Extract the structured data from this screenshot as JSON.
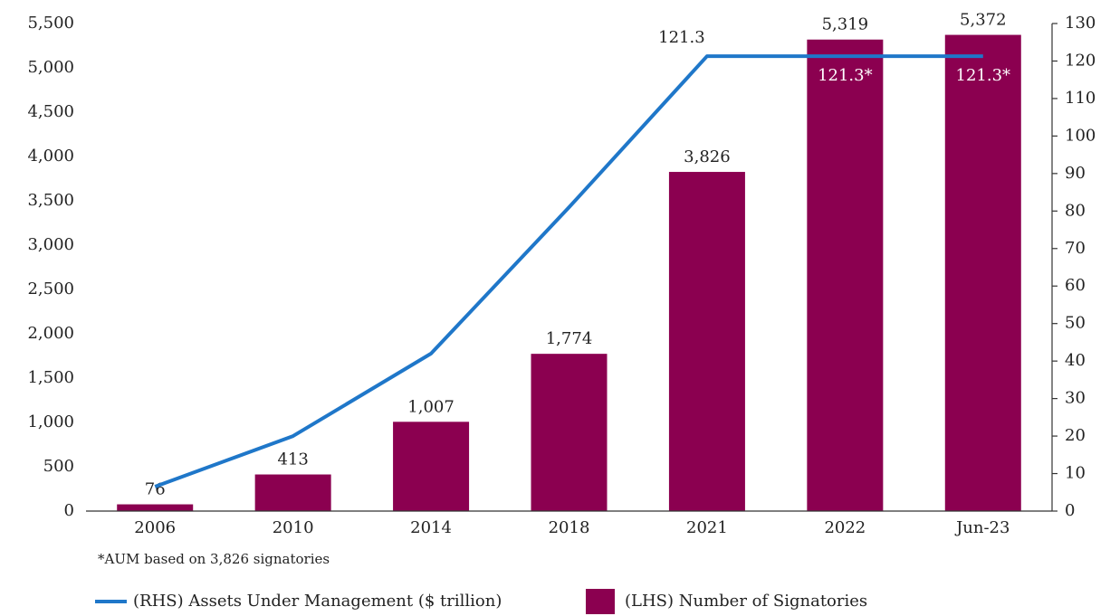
{
  "chart_data": {
    "type": "bar",
    "categories": [
      "2006",
      "2010",
      "2014",
      "2018",
      "2021",
      "2022",
      "Jun-23"
    ],
    "series": [
      {
        "name": "(LHS) Number of Signatories",
        "type": "bar",
        "color": "#8b0050",
        "values": [
          76,
          413,
          1007,
          1774,
          3826,
          5319,
          5372
        ],
        "value_labels": [
          "76",
          "413",
          "1,007",
          "1,774",
          "3,826",
          "5,319",
          "5,372"
        ]
      },
      {
        "name": "(RHS) Assets Under Management ($ trillion)",
        "type": "line",
        "axis": "y2",
        "color": "#1f77c9",
        "values": [
          6.5,
          20,
          42,
          81,
          121.3,
          121.3,
          121.3
        ],
        "value_labels": [
          null,
          null,
          null,
          null,
          "121.3",
          "121.3*",
          "121.3*"
        ]
      }
    ],
    "ylim": [
      0,
      5500
    ],
    "yticks": [
      0,
      500,
      {
        "value": 1000,
        "label": "1,000"
      },
      {
        "value": 1500,
        "label": "1,500"
      },
      {
        "value": 2000,
        "label": "2,000"
      },
      {
        "value": 2500,
        "label": "2,500"
      },
      {
        "value": 3000,
        "label": "3,000"
      },
      {
        "value": 3500,
        "label": "3,500"
      },
      {
        "value": 4000,
        "label": "4,000"
      },
      {
        "value": 4500,
        "label": "4,500"
      },
      {
        "value": 5000,
        "label": "5,000"
      },
      {
        "value": 5500,
        "label": "5,500"
      }
    ],
    "y2lim": [
      0,
      130
    ],
    "y2ticks": [
      0,
      10,
      20,
      30,
      40,
      50,
      60,
      70,
      80,
      90,
      100,
      110,
      120,
      130
    ],
    "footnote": "*AUM based on 3,826 signatories",
    "legend": "bottom"
  }
}
